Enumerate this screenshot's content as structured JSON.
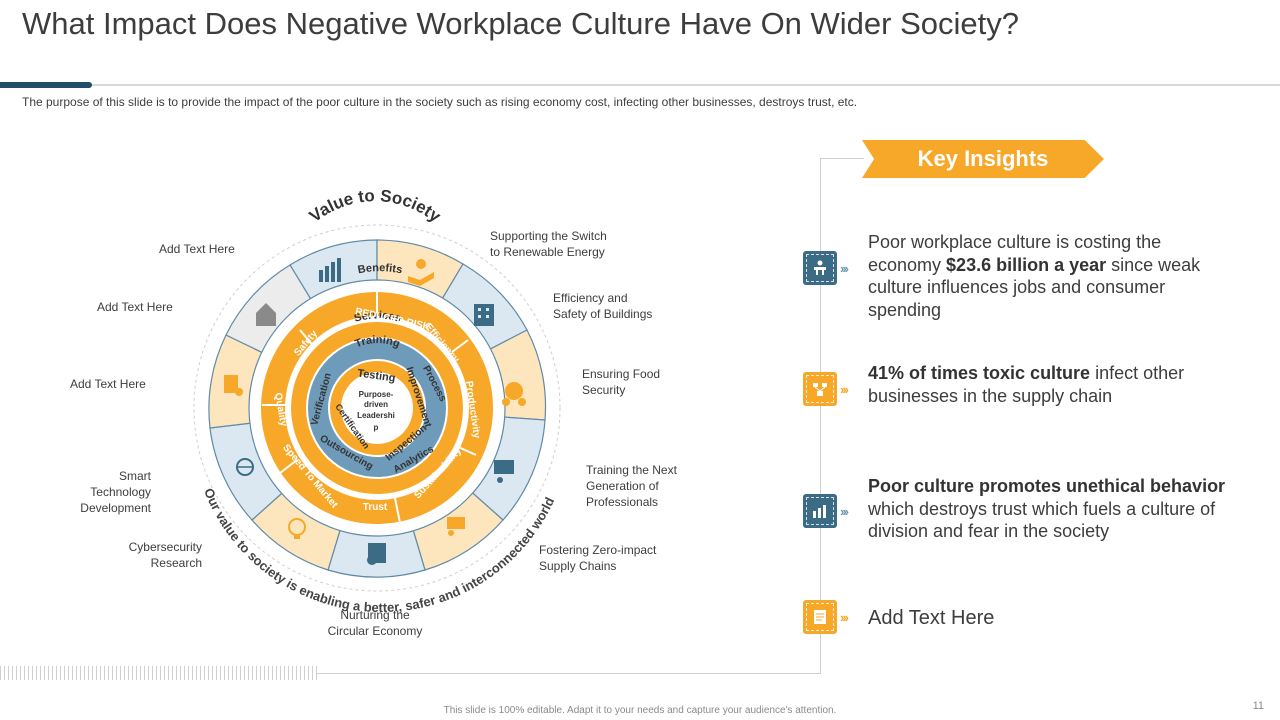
{
  "title": "What Impact Does Negative Workplace Culture Have On Wider Society?",
  "subtitle": "The purpose of this slide is to provide the impact of the poor culture in the society such as rising economy cost, infecting other businesses, destroys trust, etc.",
  "wheel": {
    "top_arc": "Value to Society",
    "bottom_arc": "Our value to society is enabling a better, safer and interconnected world",
    "center": [
      "Purpose-",
      "driven",
      "Leadershi",
      "p"
    ],
    "ring_outer": [
      "Benefits",
      "REDUCED RISK",
      "Efficiency",
      "Productivity",
      "Sustainability",
      "Trust",
      "Speed To Market",
      "Quality",
      "Safety"
    ],
    "ring_middle": [
      "Services",
      "Process",
      "Improvement",
      "Inspection",
      "Analytics",
      "Outsourcing",
      "Verification"
    ],
    "ring_inner": [
      "Training",
      "Testing",
      "Certification"
    ]
  },
  "labels": {
    "l1": "Add Text Here",
    "l2": "Add Text Here",
    "l3": "Add Text Here",
    "l4": [
      "Smart",
      "Technology",
      "Development"
    ],
    "l5": [
      "Cybersecurity",
      "Research"
    ],
    "l6": [
      "Nurturing the",
      "Circular Economy"
    ],
    "r1": [
      "Supporting the Switch",
      "to Renewable  Energy"
    ],
    "r2": [
      "Efficiency and",
      "Safety of Buildings"
    ],
    "r3": [
      "Ensuring Food",
      "Security"
    ],
    "r4": [
      "Training  the Next",
      "Generation  of",
      "Professionals"
    ],
    "r5": [
      "Fostering Zero-impact",
      "Supply Chains"
    ]
  },
  "key_insights": {
    "heading": "Key Insights",
    "items": [
      {
        "pre": "Poor workplace culture is costing the economy ",
        "bold": "$23.6 billion a year",
        "post": " since weak culture influences jobs and consumer spending",
        "icon": "worker-desk-icon",
        "color": "blue"
      },
      {
        "pre": "",
        "bold": "41% of times toxic culture",
        "post": " infect other businesses in the supply chain",
        "icon": "network-chart-icon",
        "color": "orange"
      },
      {
        "pre": "",
        "bold": "Poor culture promotes unethical behavior",
        "post": " which destroys trust which fuels a culture of division and fear in the society",
        "icon": "building-chart-icon",
        "color": "blue"
      },
      {
        "pre": "Add Text Here",
        "bold": "",
        "post": "",
        "icon": "document-icon",
        "color": "orange"
      }
    ]
  },
  "footer": "This slide is 100% editable. Adapt it to your needs and capture your audience's attention.",
  "page_number": "11",
  "colors": {
    "orange": "#f7a829",
    "light_orange": "#fde6bd",
    "blue": "#3b6b85",
    "light_blue": "#dce8f1",
    "grey": "#ececec"
  }
}
